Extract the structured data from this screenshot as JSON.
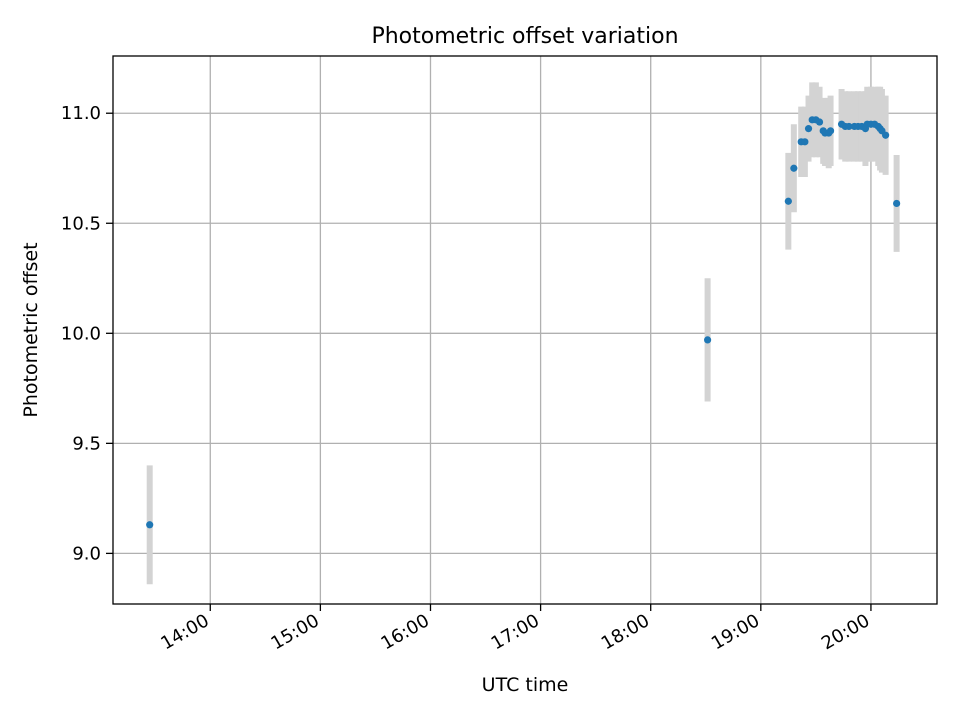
{
  "chart_data": {
    "type": "scatter",
    "title": "Photometric offset variation",
    "xlabel": "UTC time",
    "ylabel": "Photometric offset",
    "x_ticks": [
      "14:00",
      "15:00",
      "16:00",
      "17:00",
      "18:00",
      "19:00",
      "20:00"
    ],
    "y_ticks": [
      "9.0",
      "9.5",
      "10.0",
      "10.5",
      "11.0"
    ],
    "xlim": [
      "13:07",
      "20:36"
    ],
    "ylim": [
      8.77,
      11.26
    ],
    "grid": true,
    "colors": {
      "points": "#1f77b4",
      "error_bars": "#d3d3d3"
    },
    "points": [
      {
        "time": "13:27",
        "y": 9.13,
        "err": 0.27
      },
      {
        "time": "18:31",
        "y": 9.97,
        "err": 0.28
      },
      {
        "time": "19:15",
        "y": 10.6,
        "err": 0.22
      },
      {
        "time": "19:18",
        "y": 10.75,
        "err": 0.2
      },
      {
        "time": "19:22",
        "y": 10.87,
        "err": 0.16
      },
      {
        "time": "19:24",
        "y": 10.87,
        "err": 0.16
      },
      {
        "time": "19:26",
        "y": 10.93,
        "err": 0.15
      },
      {
        "time": "19:28",
        "y": 10.97,
        "err": 0.17
      },
      {
        "time": "19:30",
        "y": 10.97,
        "err": 0.17
      },
      {
        "time": "19:32",
        "y": 10.96,
        "err": 0.16
      },
      {
        "time": "19:34",
        "y": 10.92,
        "err": 0.15
      },
      {
        "time": "19:35",
        "y": 10.91,
        "err": 0.15
      },
      {
        "time": "19:37",
        "y": 10.91,
        "err": 0.16
      },
      {
        "time": "19:38",
        "y": 10.92,
        "err": 0.16
      },
      {
        "time": "19:44",
        "y": 10.95,
        "err": 0.16
      },
      {
        "time": "19:46",
        "y": 10.94,
        "err": 0.16
      },
      {
        "time": "19:48",
        "y": 10.94,
        "err": 0.16
      },
      {
        "time": "19:51",
        "y": 10.94,
        "err": 0.16
      },
      {
        "time": "19:53",
        "y": 10.94,
        "err": 0.16
      },
      {
        "time": "19:55",
        "y": 10.94,
        "err": 0.16
      },
      {
        "time": "19:57",
        "y": 10.93,
        "err": 0.17
      },
      {
        "time": "19:58",
        "y": 10.95,
        "err": 0.17
      },
      {
        "time": "20:00",
        "y": 10.95,
        "err": 0.17
      },
      {
        "time": "20:02",
        "y": 10.95,
        "err": 0.17
      },
      {
        "time": "20:04",
        "y": 10.94,
        "err": 0.18
      },
      {
        "time": "20:05",
        "y": 10.93,
        "err": 0.19
      },
      {
        "time": "20:06",
        "y": 10.92,
        "err": 0.19
      },
      {
        "time": "20:08",
        "y": 10.9,
        "err": 0.18
      },
      {
        "time": "20:14",
        "y": 10.59,
        "err": 0.22
      }
    ]
  }
}
